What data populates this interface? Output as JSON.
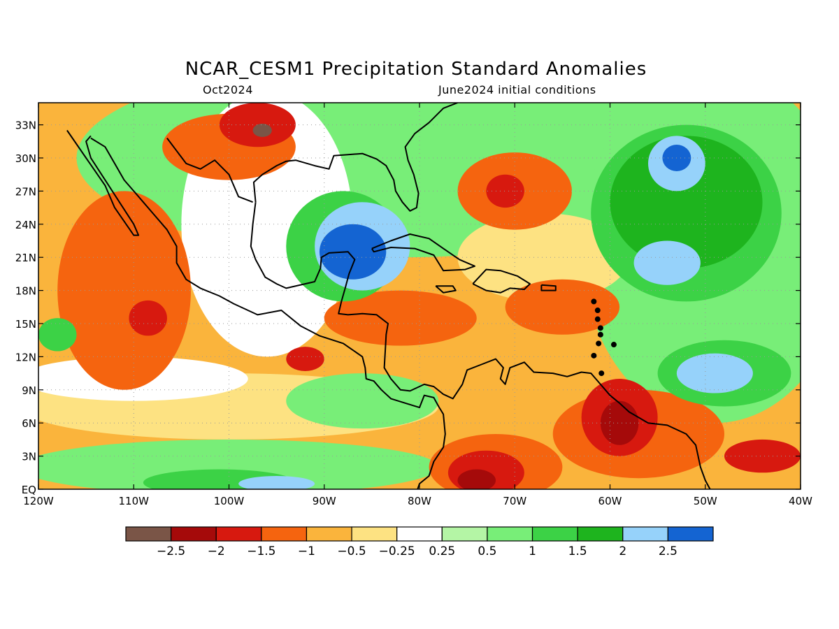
{
  "title": "NCAR_CESM1 Precipitation Standard Anomalies",
  "valid_month": "Oct2024",
  "init_text": "June2024 initial conditions",
  "map": {
    "lon_range": [
      -120,
      -40
    ],
    "lat_range": [
      0,
      35
    ],
    "lat_ticks": [
      {
        "v": 33,
        "t": "33N"
      },
      {
        "v": 30,
        "t": "30N"
      },
      {
        "v": 27,
        "t": "27N"
      },
      {
        "v": 24,
        "t": "24N"
      },
      {
        "v": 21,
        "t": "21N"
      },
      {
        "v": 18,
        "t": "18N"
      },
      {
        "v": 15,
        "t": "15N"
      },
      {
        "v": 12,
        "t": "12N"
      },
      {
        "v": 9,
        "t": "9N"
      },
      {
        "v": 6,
        "t": "6N"
      },
      {
        "v": 3,
        "t": "3N"
      },
      {
        "v": 0,
        "t": "EQ"
      }
    ],
    "lon_ticks": [
      {
        "v": -120,
        "t": "120W"
      },
      {
        "v": -110,
        "t": "110W"
      },
      {
        "v": -100,
        "t": "100W"
      },
      {
        "v": -90,
        "t": "90W"
      },
      {
        "v": -80,
        "t": "80W"
      },
      {
        "v": -70,
        "t": "70W"
      },
      {
        "v": -60,
        "t": "60W"
      },
      {
        "v": -50,
        "t": "50W"
      },
      {
        "v": -40,
        "t": "40W"
      }
    ],
    "grid": "dotted"
  },
  "colorbar": {
    "colors": [
      "#7a5547",
      "#a50a0a",
      "#d7190f",
      "#f5640f",
      "#fab43c",
      "#fde282",
      "#ffffff",
      "#b4f5a5",
      "#78ee78",
      "#3cd246",
      "#1eb41e",
      "#96d2fa",
      "#1464d2"
    ],
    "labels": [
      "−2.5",
      "−2",
      "−1.5",
      "−1",
      "−0.5",
      "−0.25",
      "0.25",
      "0.5",
      "1",
      "1.5",
      "2",
      "2.5"
    ]
  },
  "anomaly_regions": [
    {
      "level": -1,
      "lon": -111,
      "lat": 18,
      "rx": 7,
      "ry": 9
    },
    {
      "level": -1,
      "lon": -100,
      "lat": 31,
      "rx": 7,
      "ry": 3
    },
    {
      "level": -1.5,
      "lon": -97,
      "lat": 33,
      "rx": 4,
      "ry": 2
    },
    {
      "level": -2.5,
      "lon": -96.5,
      "lat": 32.5,
      "rx": 1,
      "ry": 0.6
    },
    {
      "level": -1.5,
      "lon": -108.5,
      "lat": 15.5,
      "rx": 2,
      "ry": 1.6
    },
    {
      "level": -1.5,
      "lon": -92,
      "lat": 11.8,
      "rx": 2,
      "ry": 1.1
    },
    {
      "level": -1,
      "lon": -82,
      "lat": 15.5,
      "rx": 8,
      "ry": 2.5
    },
    {
      "level": -1,
      "lon": -70,
      "lat": 27,
      "rx": 6,
      "ry": 3.5
    },
    {
      "level": -1.5,
      "lon": -71,
      "lat": 27,
      "rx": 2,
      "ry": 1.5
    },
    {
      "level": -1,
      "lon": -65,
      "lat": 16.5,
      "rx": 6,
      "ry": 2.5
    },
    {
      "level": -1,
      "lon": -57,
      "lat": 5,
      "rx": 9,
      "ry": 4
    },
    {
      "level": -1.5,
      "lon": -59,
      "lat": 6.5,
      "rx": 4,
      "ry": 3.5
    },
    {
      "level": -2,
      "lon": -59,
      "lat": 6,
      "rx": 2,
      "ry": 2
    },
    {
      "level": -1,
      "lon": -72,
      "lat": 2,
      "rx": 7,
      "ry": 3
    },
    {
      "level": -1.5,
      "lon": -73,
      "lat": 1.5,
      "rx": 4,
      "ry": 2
    },
    {
      "level": -2,
      "lon": -74,
      "lat": 0.8,
      "rx": 2,
      "ry": 1
    },
    {
      "level": -1.5,
      "lon": -44,
      "lat": 3,
      "rx": 4,
      "ry": 1.5
    },
    {
      "level": 1,
      "lon": -88,
      "lat": 22,
      "rx": 6,
      "ry": 5
    },
    {
      "level": 2,
      "lon": -86,
      "lat": 22,
      "rx": 5,
      "ry": 4
    },
    {
      "level": 2.5,
      "lon": -87,
      "lat": 21.5,
      "rx": 3.5,
      "ry": 2.5
    },
    {
      "level": 1,
      "lon": -52,
      "lat": 25,
      "rx": 10,
      "ry": 8
    },
    {
      "level": 1.5,
      "lon": -52,
      "lat": 26,
      "rx": 8,
      "ry": 6
    },
    {
      "level": 2,
      "lon": -53,
      "lat": 29.5,
      "rx": 3,
      "ry": 2.5
    },
    {
      "level": 2.5,
      "lon": -53,
      "lat": 30,
      "rx": 1.5,
      "ry": 1.2
    },
    {
      "level": 2,
      "lon": -54,
      "lat": 20.5,
      "rx": 3.5,
      "ry": 2
    },
    {
      "level": 1,
      "lon": -48,
      "lat": 10.5,
      "rx": 7,
      "ry": 3
    },
    {
      "level": 2,
      "lon": -49,
      "lat": 10.5,
      "rx": 4,
      "ry": 1.8
    },
    {
      "level": 1,
      "lon": -101,
      "lat": 0.6,
      "rx": 8,
      "ry": 1.2
    },
    {
      "level": 2,
      "lon": -95,
      "lat": 0.5,
      "rx": 4,
      "ry": 0.7
    },
    {
      "level": 1,
      "lon": -118,
      "lat": 14,
      "rx": 2,
      "ry": 1.5
    }
  ]
}
